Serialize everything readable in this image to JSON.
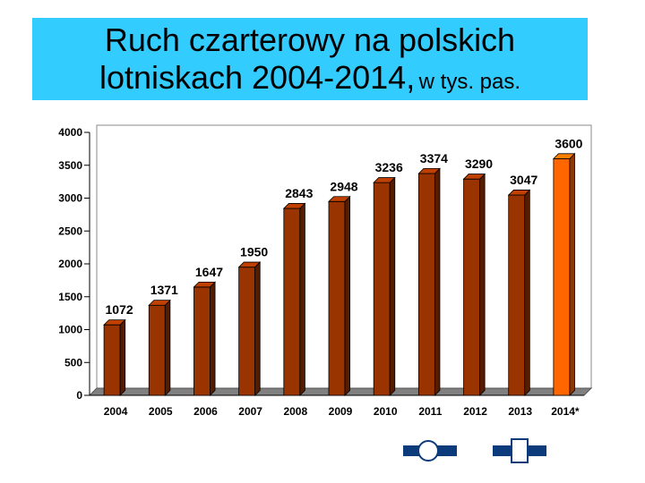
{
  "title": {
    "line1": "Ruch czarterowy na polskich",
    "line2": "lotniskach 2004-2014,",
    "unit": "w tys. pas."
  },
  "colors": {
    "title_bg": "#33ccff",
    "bar": "#993300",
    "bar_highlight": "#ff6600"
  },
  "chart_data": {
    "type": "bar",
    "categories": [
      "2004",
      "2005",
      "2006",
      "2007",
      "2008",
      "2009",
      "2010",
      "2011",
      "2012",
      "2013",
      "2014*"
    ],
    "values": [
      1072,
      1371,
      1647,
      1950,
      2843,
      2948,
      3236,
      3374,
      3290,
      3047,
      3600
    ],
    "data_labels": [
      "1072",
      "1371",
      "1647",
      "1950",
      "2843",
      "2948",
      "3236",
      "3374",
      "3290",
      "3047",
      "3600"
    ],
    "highlighted_categories": [
      "2014*"
    ],
    "yticks": [
      "0",
      "500",
      "1000",
      "1500",
      "2000",
      "2500",
      "3000",
      "3500",
      "4000"
    ],
    "ylim": [
      0,
      4000
    ],
    "grid": false,
    "legend": "none",
    "style": "3d"
  }
}
